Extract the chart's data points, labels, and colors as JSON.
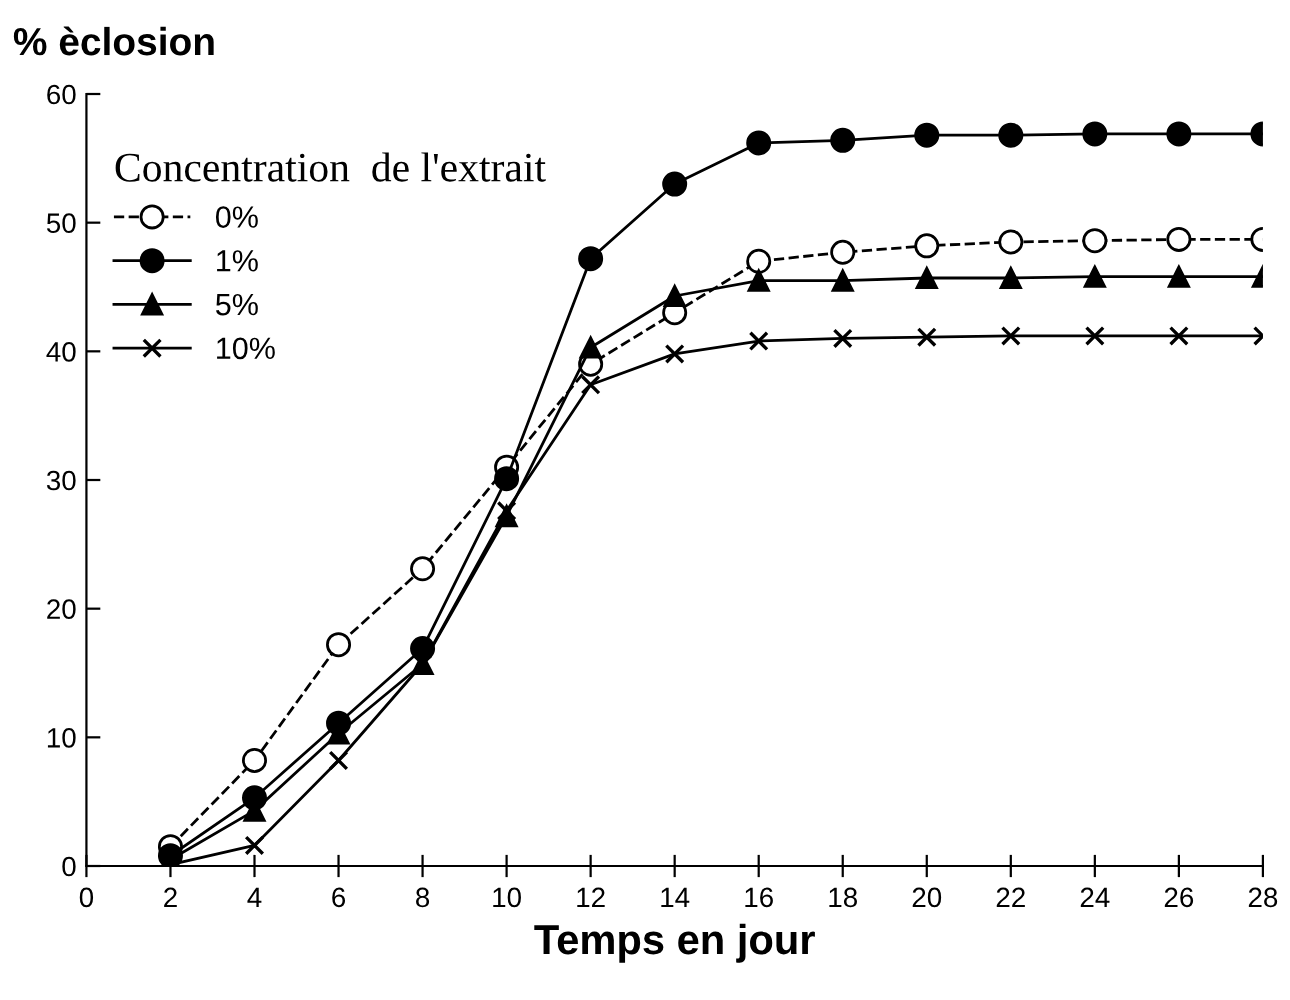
{
  "chart_data": {
    "type": "line",
    "ylabel": "% èclosion",
    "xlabel": "Temps en jour",
    "legend_title": "Concentration  de l'extrait",
    "legend": "top left",
    "grid": false,
    "x": [
      2,
      4,
      6,
      8,
      10,
      12,
      14,
      16,
      18,
      20,
      22,
      24,
      26,
      28
    ],
    "xlim": [
      0,
      28
    ],
    "xticks": [
      0,
      2,
      4,
      6,
      8,
      10,
      12,
      14,
      16,
      18,
      20,
      22,
      24,
      26,
      28
    ],
    "ylim": [
      0,
      60
    ],
    "yticks": [
      0,
      10,
      20,
      30,
      40,
      50,
      60
    ],
    "series": [
      {
        "name": "0%",
        "color": "#000000",
        "marker": "circle",
        "line_style": "dashed",
        "values": [
          1.5,
          8.2,
          17.2,
          23.1,
          31,
          39,
          43,
          47,
          47.7,
          48.2,
          48.5,
          48.6,
          48.7,
          48.7
        ]
      },
      {
        "name": "1%",
        "color": "#000000",
        "marker": "circle",
        "line_style": "solid",
        "values": [
          0.8,
          5.3,
          11.1,
          16.9,
          30.1,
          47.2,
          53,
          56.2,
          56.4,
          56.8,
          56.8,
          56.9,
          56.9,
          56.9
        ]
      },
      {
        "name": "5%",
        "color": "#000000",
        "marker": "triangle",
        "line_style": "solid",
        "values": [
          0.5,
          4.3,
          10.3,
          15.7,
          27.2,
          40.3,
          44.3,
          45.5,
          45.5,
          45.7,
          45.7,
          45.8,
          45.8,
          45.8
        ]
      },
      {
        "name": "10%",
        "color": "#000000",
        "marker": "cross",
        "line_style": "solid",
        "values": [
          0.1,
          1.6,
          8.2,
          15.7,
          27.6,
          37.4,
          39.8,
          40.8,
          41,
          41.1,
          41.2,
          41.2,
          41.2,
          41.2
        ]
      }
    ]
  }
}
